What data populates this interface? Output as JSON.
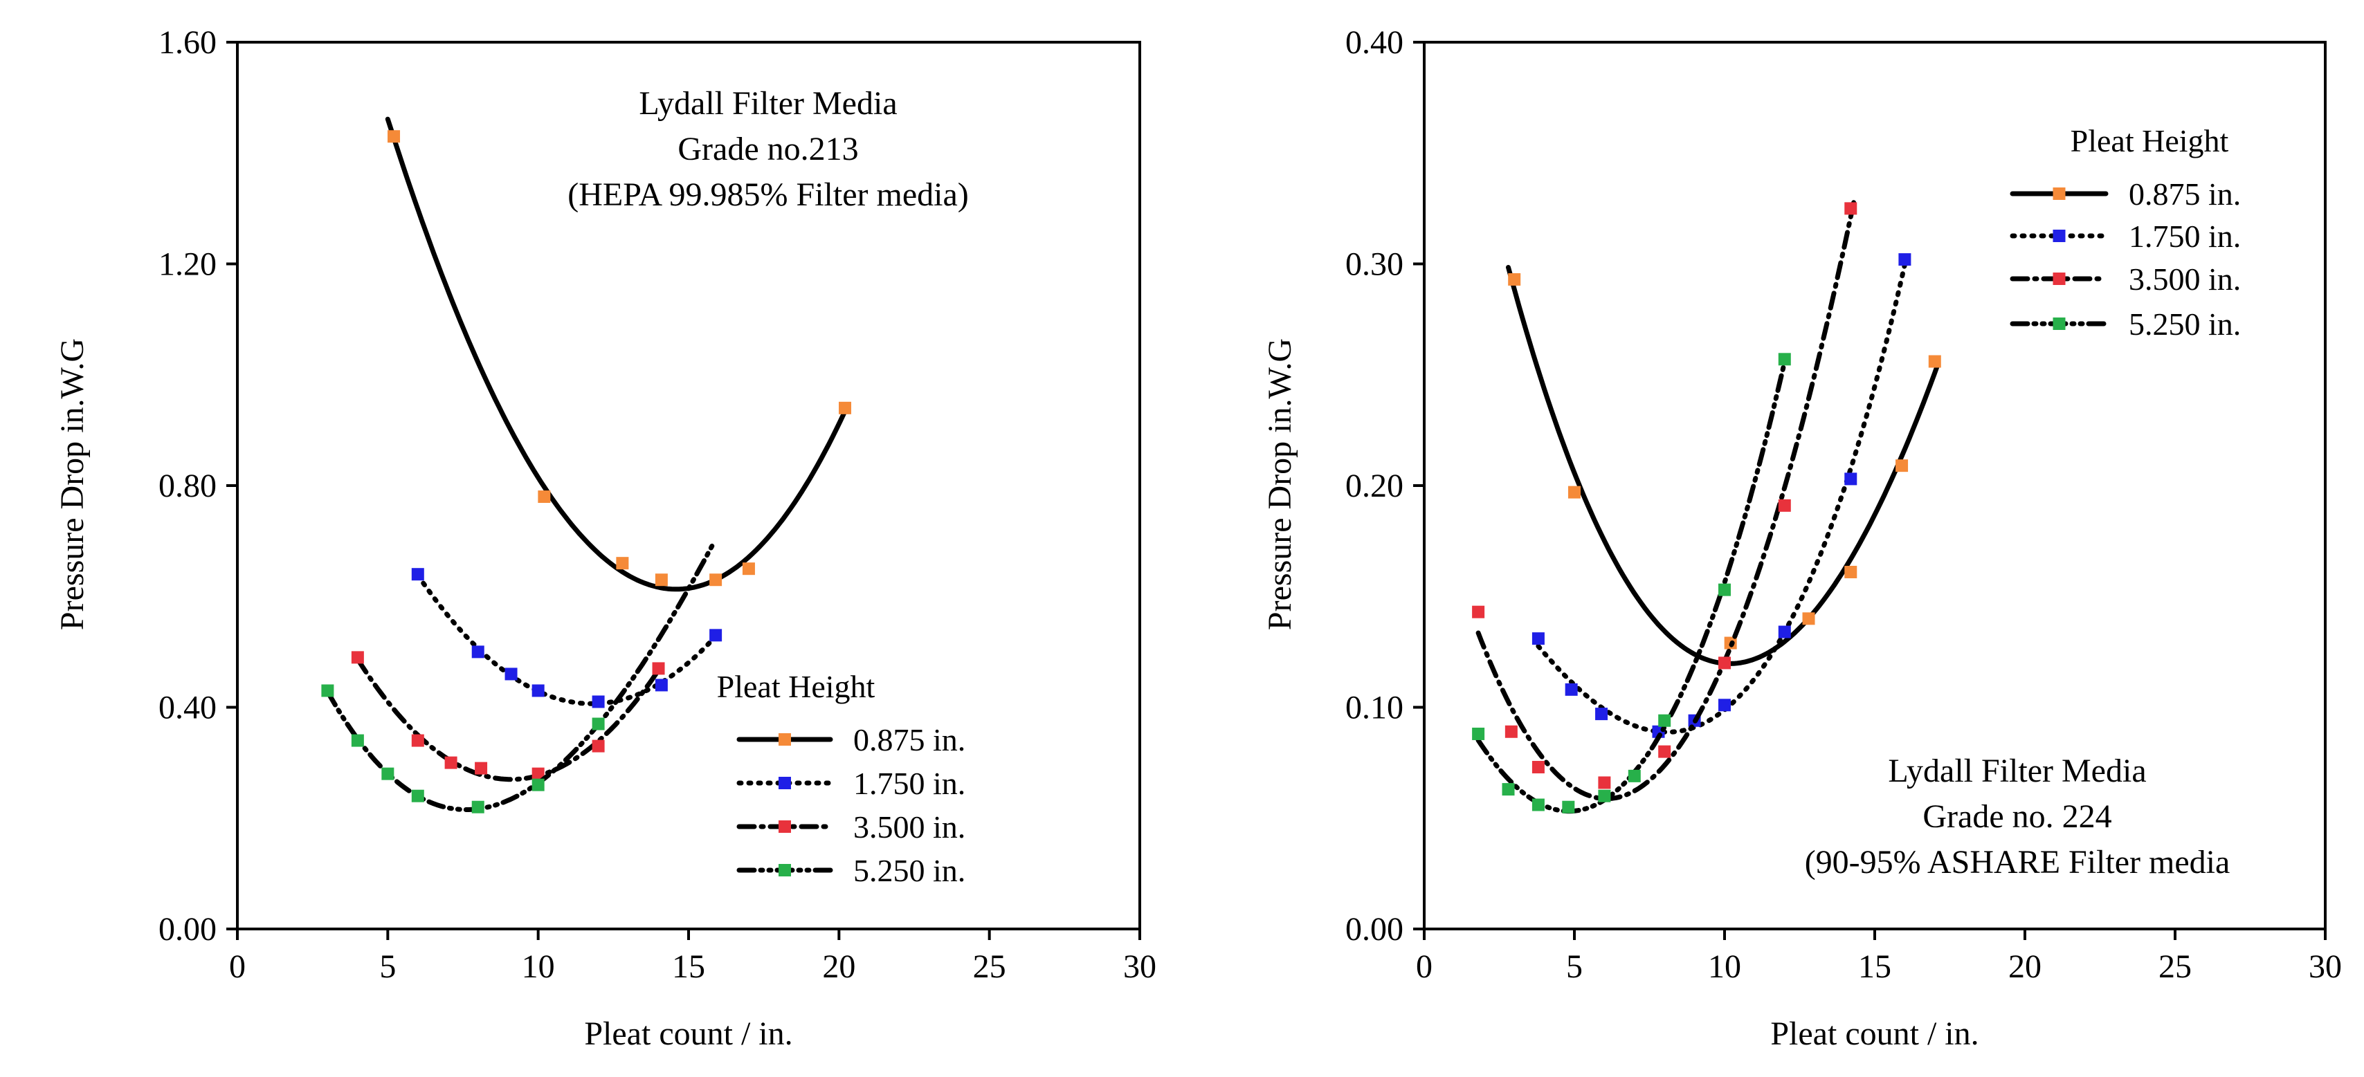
{
  "chart_data": [
    {
      "type": "line",
      "title": "",
      "xlabel": "Pleat count / in.",
      "ylabel": "Pressure Drop in.W.G",
      "xlim": [
        0,
        30
      ],
      "ylim": [
        0,
        1.6
      ],
      "xticks": [
        "0",
        "5",
        "10",
        "15",
        "20",
        "25",
        "30"
      ],
      "yticks": [
        "0.00",
        "0.40",
        "0.80",
        "1.20",
        "1.60"
      ],
      "annotation_lines": [
        "Lydall Filter Media",
        "Grade no.213",
        "(HEPA 99.985% Filter media)"
      ],
      "legend_title": "Pleat Height",
      "legend_position": "bottom-right",
      "series": [
        {
          "name": "0.875 in.",
          "color": "#F58A38",
          "dash": "solid",
          "x": [
            5.2,
            10.2,
            12.8,
            14.1,
            15.9,
            17.0,
            20.2
          ],
          "y": [
            1.43,
            0.78,
            0.66,
            0.63,
            0.63,
            0.65,
            0.94
          ],
          "curve_range": [
            5.0,
            20.3
          ]
        },
        {
          "name": "1.750 in.",
          "color": "#1F1FE6",
          "dash": "dot",
          "x": [
            6.0,
            8.0,
            9.1,
            10.0,
            12.0,
            14.1,
            15.9
          ],
          "y": [
            0.64,
            0.5,
            0.46,
            0.43,
            0.41,
            0.44,
            0.53
          ],
          "curve_range": [
            6.0,
            16.0
          ]
        },
        {
          "name": "3.500 in.",
          "color": "#E8323C",
          "dash": "dashdot",
          "x": [
            4.0,
            6.0,
            7.1,
            8.1,
            10.0,
            12.0,
            14.0
          ],
          "y": [
            0.49,
            0.34,
            0.3,
            0.29,
            0.28,
            0.33,
            0.47
          ],
          "curve_range": [
            4.0,
            14.2
          ]
        },
        {
          "name": "5.250 in.",
          "color": "#27B04A",
          "dash": "dashdotdot",
          "x": [
            3.0,
            4.0,
            5.0,
            6.0,
            8.0,
            10.0,
            12.0
          ],
          "y": [
            0.43,
            0.34,
            0.28,
            0.24,
            0.22,
            0.26,
            0.37
          ],
          "curve_range": [
            3.0,
            15.8
          ]
        }
      ]
    },
    {
      "type": "line",
      "title": "",
      "xlabel": "Pleat count / in.",
      "ylabel": "Pressure Drop in.W.G",
      "xlim": [
        0,
        30
      ],
      "ylim": [
        0,
        0.4
      ],
      "xticks": [
        "0",
        "5",
        "10",
        "15",
        "20",
        "25",
        "30"
      ],
      "yticks": [
        "0.00",
        "0.10",
        "0.20",
        "0.30",
        "0.40"
      ],
      "annotation_lines": [
        "Lydall Filter Media",
        "Grade no. 224",
        "(90-95% ASHARE Filter media"
      ],
      "legend_title": "Pleat Height",
      "legend_position": "top-right",
      "series": [
        {
          "name": "0.875 in.",
          "color": "#F58A38",
          "dash": "solid",
          "x": [
            3.0,
            5.0,
            10.2,
            12.8,
            14.2,
            15.9,
            17.0
          ],
          "y": [
            0.293,
            0.197,
            0.129,
            0.14,
            0.161,
            0.209,
            0.256
          ],
          "curve_range": [
            2.8,
            17.1
          ]
        },
        {
          "name": "1.750 in.",
          "color": "#1F1FE6",
          "dash": "dot",
          "x": [
            3.8,
            4.9,
            5.9,
            7.8,
            9.0,
            10.0,
            12.0,
            14.2,
            16.0
          ],
          "y": [
            0.131,
            0.108,
            0.097,
            0.089,
            0.094,
            0.101,
            0.134,
            0.203,
            0.302
          ],
          "curve_range": [
            3.8,
            16.0
          ]
        },
        {
          "name": "3.500 in.",
          "color": "#E8323C",
          "dash": "dashdot",
          "x": [
            1.8,
            2.9,
            3.8,
            6.0,
            8.0,
            10.0,
            12.0,
            14.2
          ],
          "y": [
            0.143,
            0.089,
            0.073,
            0.066,
            0.08,
            0.12,
            0.191,
            0.325
          ],
          "curve_range": [
            1.8,
            14.3
          ]
        },
        {
          "name": "5.250 in.",
          "color": "#27B04A",
          "dash": "dashdotdot",
          "x": [
            1.8,
            2.8,
            3.8,
            4.8,
            6.0,
            7.0,
            8.0,
            10.0,
            12.0
          ],
          "y": [
            0.088,
            0.063,
            0.056,
            0.055,
            0.06,
            0.069,
            0.094,
            0.153,
            0.257
          ],
          "curve_range": [
            1.8,
            12.0
          ]
        }
      ]
    }
  ]
}
